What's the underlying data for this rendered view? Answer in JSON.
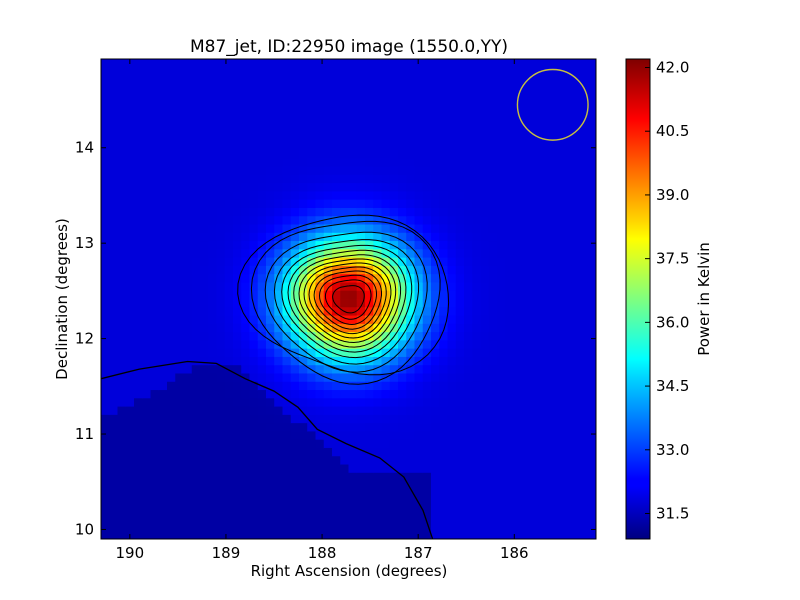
{
  "chart_data": {
    "type": "heatmap",
    "title": "M87_jet, ID:22950 image (1550.0,YY)",
    "xlabel": "Right Ascension (degrees)",
    "ylabel": "Declination (degrees)",
    "colorbar_label": "Power in Kelvin",
    "colormap": "jet",
    "xlim": [
      190.3,
      185.15
    ],
    "ylim": [
      9.9,
      14.93
    ],
    "x_inverted": true,
    "xticks": [
      {
        "value": 190,
        "label": "190"
      },
      {
        "value": 189,
        "label": "189"
      },
      {
        "value": 188,
        "label": "188"
      },
      {
        "value": 187,
        "label": "187"
      },
      {
        "value": 186,
        "label": "186"
      }
    ],
    "yticks": [
      {
        "value": 10,
        "label": "10"
      },
      {
        "value": 11,
        "label": "11"
      },
      {
        "value": 12,
        "label": "12"
      },
      {
        "value": 13,
        "label": "13"
      },
      {
        "value": 14,
        "label": "14"
      }
    ],
    "colorbar_range": [
      30.9,
      42.2
    ],
    "colorbar_ticks": [
      {
        "value": 31.5,
        "label": "31.5"
      },
      {
        "value": 33.0,
        "label": "33.0"
      },
      {
        "value": 34.5,
        "label": "34.5"
      },
      {
        "value": 36.0,
        "label": "36.0"
      },
      {
        "value": 37.5,
        "label": "37.5"
      },
      {
        "value": 39.0,
        "label": "39.0"
      },
      {
        "value": 40.5,
        "label": "40.5"
      },
      {
        "value": 42.0,
        "label": "42.0"
      }
    ],
    "peak": {
      "ra": 187.72,
      "dec": 12.42,
      "value": 42.0
    },
    "background_level": 31.9,
    "low_region_level": 31.3,
    "beam": {
      "ra": 185.6,
      "dec": 14.45,
      "radius_deg": 0.37,
      "color": "#c8c040"
    },
    "contour_color": "#000000",
    "grid": false
  }
}
